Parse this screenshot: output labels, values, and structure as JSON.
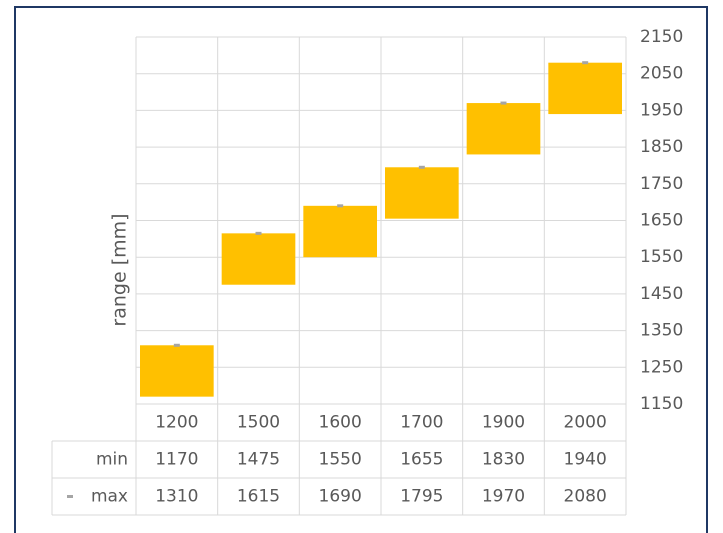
{
  "chart_data": {
    "type": "range_bar",
    "y_label": "range [mm]",
    "categories": [
      "1200",
      "1500",
      "1600",
      "1700",
      "1900",
      "2000"
    ],
    "bar_color": "#ffc000",
    "series": [
      {
        "name": "min",
        "values": [
          1170,
          1475,
          1550,
          1655,
          1830,
          1940
        ]
      },
      {
        "name": "max",
        "color": "#a5a5a5",
        "values": [
          1310,
          1615,
          1690,
          1795,
          1970,
          2080
        ]
      }
    ],
    "ylim": [
      1150,
      2150
    ],
    "yticks": [
      1150,
      1250,
      1350,
      1450,
      1550,
      1650,
      1750,
      1850,
      1950,
      2050,
      2150
    ],
    "grid": true
  }
}
